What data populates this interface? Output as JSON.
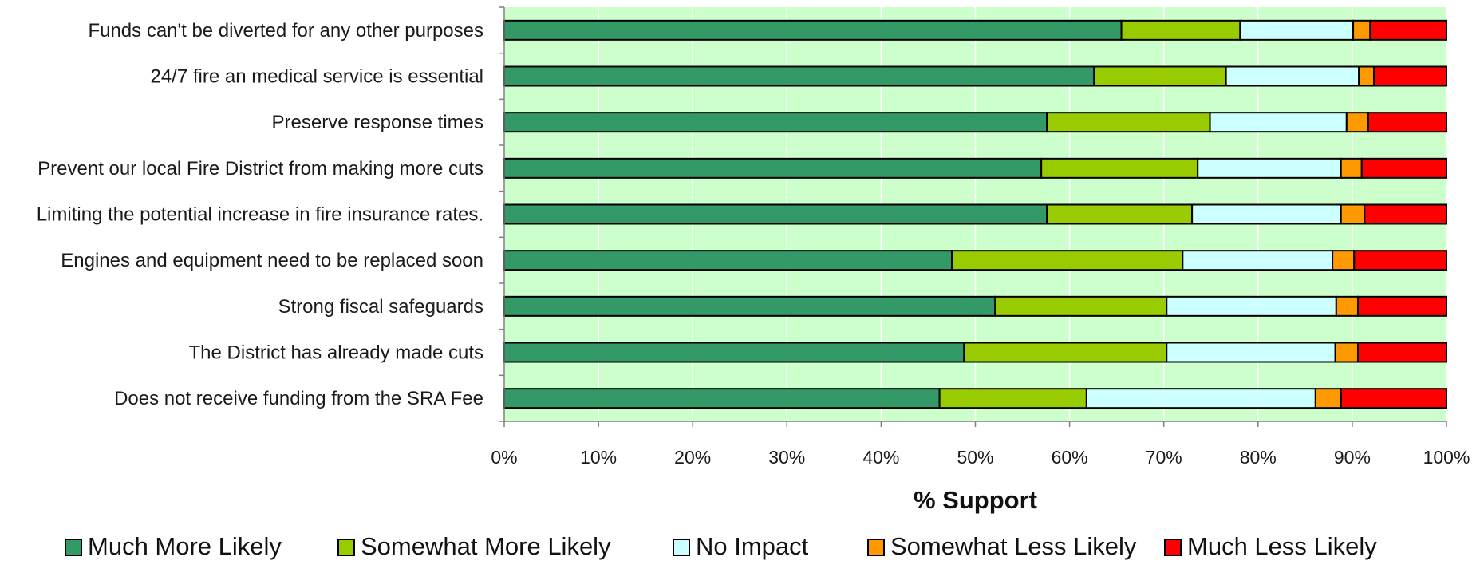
{
  "chart_data": {
    "type": "bar",
    "orientation": "horizontal",
    "stacked": true,
    "percent_stacked": true,
    "categories": [
      "Funds can't be diverted for any other purposes",
      "24/7 fire an medical service is essential",
      "Preserve response times",
      "Prevent our local Fire District from making more cuts",
      "Limiting the potential increase in fire insurance rates.",
      "Engines and equipment need to be replaced soon",
      "Strong fiscal safeguards",
      "The District has already made cuts",
      "Does not receive funding from the SRA Fee"
    ],
    "series": [
      {
        "name": "Much More Likely",
        "color": "#339966",
        "values": [
          65.5,
          62.6,
          57.6,
          57.0,
          57.6,
          47.5,
          52.1,
          48.8,
          46.2
        ]
      },
      {
        "name": "Somewhat More Likely",
        "color": "#99cc00",
        "values": [
          12.6,
          14.0,
          17.3,
          16.6,
          15.4,
          24.5,
          18.2,
          21.5,
          15.6
        ]
      },
      {
        "name": "No Impact",
        "color": "#ccffff",
        "values": [
          12.0,
          14.1,
          14.5,
          15.2,
          15.8,
          15.9,
          18.0,
          17.9,
          24.3
        ]
      },
      {
        "name": "Somewhat Less Likely",
        "color": "#ff9900",
        "values": [
          1.8,
          1.6,
          2.3,
          2.2,
          2.5,
          2.3,
          2.3,
          2.4,
          2.7
        ]
      },
      {
        "name": "Much Less Likely",
        "color": "#ff0000",
        "values": [
          8.1,
          7.7,
          8.3,
          9.0,
          8.7,
          9.8,
          9.4,
          9.4,
          11.2
        ]
      }
    ],
    "xlim": [
      0,
      100
    ],
    "xticks": [
      "0%",
      "10%",
      "20%",
      "30%",
      "40%",
      "50%",
      "60%",
      "70%",
      "80%",
      "90%",
      "100%"
    ],
    "xlabel": "% Support",
    "ylabel": "",
    "title": "",
    "grid": true,
    "plot_background": "#ccffcc",
    "legend_position": "bottom"
  }
}
